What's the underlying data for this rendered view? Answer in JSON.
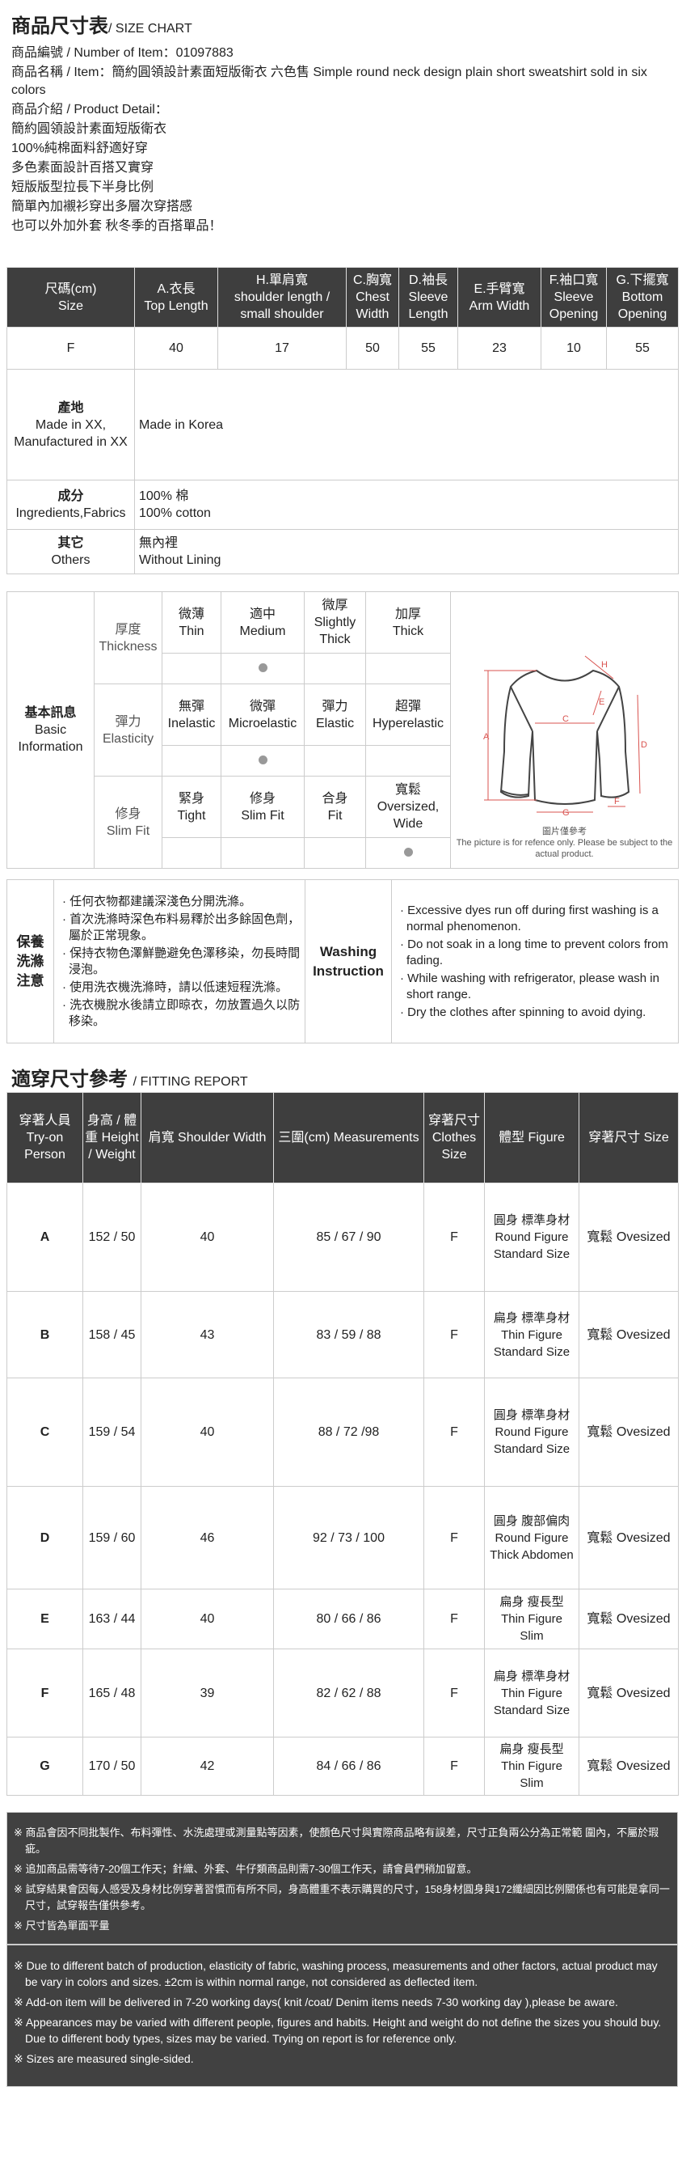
{
  "header": {
    "title": "商品尺寸表",
    "title_en": "/ SIZE CHART",
    "item_number": "商品編號 / Number of Item：01097883",
    "item_name": "商品名稱 / Item：簡約圓領設計素面短版衛衣 六色售 Simple round neck design plain short sweatshirt sold in six colors",
    "detail_label": "商品介紹 / Product Detail：",
    "details": [
      "簡約圓領設計素面短版衛衣",
      "100%純棉面料舒適好穿",
      "多色素面設計百搭又實穿",
      "短版版型拉長下半身比例",
      "簡單內加襯衫穿出多層次穿搭感",
      "也可以外加外套 秋冬季的百搭單品！"
    ]
  },
  "size_table": {
    "headers": [
      [
        "尺碼(cm)",
        "Size"
      ],
      [
        "A.衣長",
        "Top Length"
      ],
      [
        "H.單肩寬",
        "shoulder length / small shoulder"
      ],
      [
        "C.胸寬",
        "Chest Width"
      ],
      [
        "D.袖長",
        "Sleeve Length"
      ],
      [
        "E.手臂寬",
        "Arm Width"
      ],
      [
        "F.袖口寬",
        "Sleeve Opening"
      ],
      [
        "G.下擺寬",
        "Bottom Opening"
      ]
    ],
    "row": [
      "F",
      "40",
      "17",
      "50",
      "55",
      "23",
      "10",
      "55"
    ],
    "origin": {
      "label_zh": "產地",
      "label_en": "Made in XX, Manufactured in XX",
      "value": "Made in Korea"
    },
    "fabric": {
      "label_zh": "成分",
      "label_en": "Ingredients,Fabrics",
      "value_zh": "100% 棉",
      "value_en": "100% cotton"
    },
    "others": {
      "label_zh": "其它",
      "label_en": "Others",
      "value_zh": "無內裡",
      "value_en": "Without Lining"
    }
  },
  "basic_info": {
    "label_zh": "基本訊息",
    "label_en": "Basic Information",
    "rows": [
      {
        "label_zh": "厚度",
        "label_en": "Thickness",
        "options": [
          [
            "微薄",
            "Thin"
          ],
          [
            "適中",
            "Medium"
          ],
          [
            "微厚",
            "Slightly Thick"
          ],
          [
            "加厚",
            "Thick"
          ]
        ],
        "selected": 1
      },
      {
        "label_zh": "彈力",
        "label_en": "Elasticity",
        "options": [
          [
            "無彈",
            "Inelastic"
          ],
          [
            "微彈",
            "Microelastic"
          ],
          [
            "彈力",
            "Elastic"
          ],
          [
            "超彈",
            "Hyperelastic"
          ]
        ],
        "selected": 1
      },
      {
        "label_zh": "修身",
        "label_en": "Slim Fit",
        "options": [
          [
            "緊身",
            "Tight"
          ],
          [
            "修身",
            "Slim Fit"
          ],
          [
            "合身",
            "Fit"
          ],
          [
            "寬鬆",
            "Oversized, Wide"
          ]
        ],
        "selected": 3
      }
    ],
    "diagram_labels": [
      "A",
      "C",
      "D",
      "E",
      "F",
      "G",
      "H"
    ],
    "diagram_note_zh": "圖片僅參考",
    "diagram_note_en": "The picture is for refence only. Please be subject to the actual product.",
    "accent_color": "#d9534f"
  },
  "washing": {
    "label_zh": "保養洗滌注意",
    "label_en": "Washing Instruction",
    "zh": [
      "任何衣物都建議深淺色分開洗滌。",
      "首次洗滌時深色布料易釋於出多餘固色劑，屬於正常現象。",
      "保持衣物色澤鮮艷避免色澤移染，勿長時間浸泡。",
      "使用洗衣機洗滌時，請以低速短程洗滌。",
      "洗衣機脫水後請立即晾衣，勿放置過久以防移染。"
    ],
    "en": [
      "Excessive dyes run off during first washing is a normal phenomenon.",
      "Do not soak in a long time to prevent colors from fading.",
      "While washing with refrigerator, please wash in short range.",
      "Dry the clothes after spinning to avoid dying."
    ]
  },
  "fitting": {
    "title": "適穿尺寸參考",
    "title_en": "/ FITTING REPORT",
    "headers": [
      "穿著人員 Try-on Person",
      "身高 / 體重 Height / Weight",
      "肩寬 Shoulder Width",
      "三圍(cm) Measurements",
      "穿著尺寸 Clothes Size",
      "體型 Figure",
      "穿著尺寸 Size"
    ],
    "rows": [
      [
        "A",
        "152 / 50",
        "40",
        "85 / 67 / 90",
        "F",
        "圓身 標準身材 Round Figure Standard Size",
        "寬鬆 Ovesized"
      ],
      [
        "B",
        "158 / 45",
        "43",
        "83 / 59 / 88",
        "F",
        "扁身 標準身材 Thin Figure Standard Size",
        "寬鬆 Ovesized"
      ],
      [
        "C",
        "159 / 54",
        "40",
        "88 / 72 /98",
        "F",
        "圓身 標準身材 Round Figure Standard Size",
        "寬鬆 Ovesized"
      ],
      [
        "D",
        "159 / 60",
        "46",
        "92 / 73 / 100",
        "F",
        "圓身 腹部偏肉 Round Figure Thick Abdomen",
        "寬鬆 Ovesized"
      ],
      [
        "E",
        "163 / 44",
        "40",
        "80 / 66 / 86",
        "F",
        "扁身 瘦長型 Thin Figure Slim",
        "寬鬆 Ovesized"
      ],
      [
        "F",
        "165 / 48",
        "39",
        "82 / 62 / 88",
        "F",
        "扁身 標準身材 Thin Figure Standard Size",
        "寬鬆 Ovesized"
      ],
      [
        "G",
        "170 / 50",
        "42",
        "84 / 66 / 86",
        "F",
        "扁身 瘦長型 Thin Figure Slim",
        "寬鬆 Ovesized"
      ]
    ]
  },
  "notes": {
    "zh": [
      "※ 商品會因不同批製作、布料彈性、水洗處理或測量點等因素，使顏色尺寸與實際商品略有誤差，尺寸正負兩公分為正常範 圍內，不屬於瑕疵。",
      "※ 追加商品需等待7-20個工作天；針織、外套、牛仔類商品則需7-30個工作天，請會員們稍加留意。",
      "※ 試穿結果會因每人感受及身材比例穿著習慣而有所不同，身高體重不表示購買的尺寸，158身材圓身與172纖細因比例關係也有可能是拿同一尺寸，試穿報告僅供參考。",
      "※ 尺寸皆為單面平量"
    ],
    "en": [
      "※ Due to different batch of production, elasticity of fabric, washing process, measurements and other factors, actual product may be vary in colors and sizes. ±2cm is within normal range, not considered as deflected item.",
      "※ Add-on item will be delivered in 7-20 working days( knit /coat/ Denim items needs 7-30 working day ),please be aware.",
      "※ Appearances may be varied with different people, figures and habits. Height and weight do not define the sizes you should buy. Due to different body types, sizes may be varied. Trying on report is for reference only.",
      "※ Sizes are measured single-sided."
    ]
  },
  "colors": {
    "header_bg": "#3e3e3e",
    "notes_bg": "#414141",
    "border": "#cccccc"
  }
}
